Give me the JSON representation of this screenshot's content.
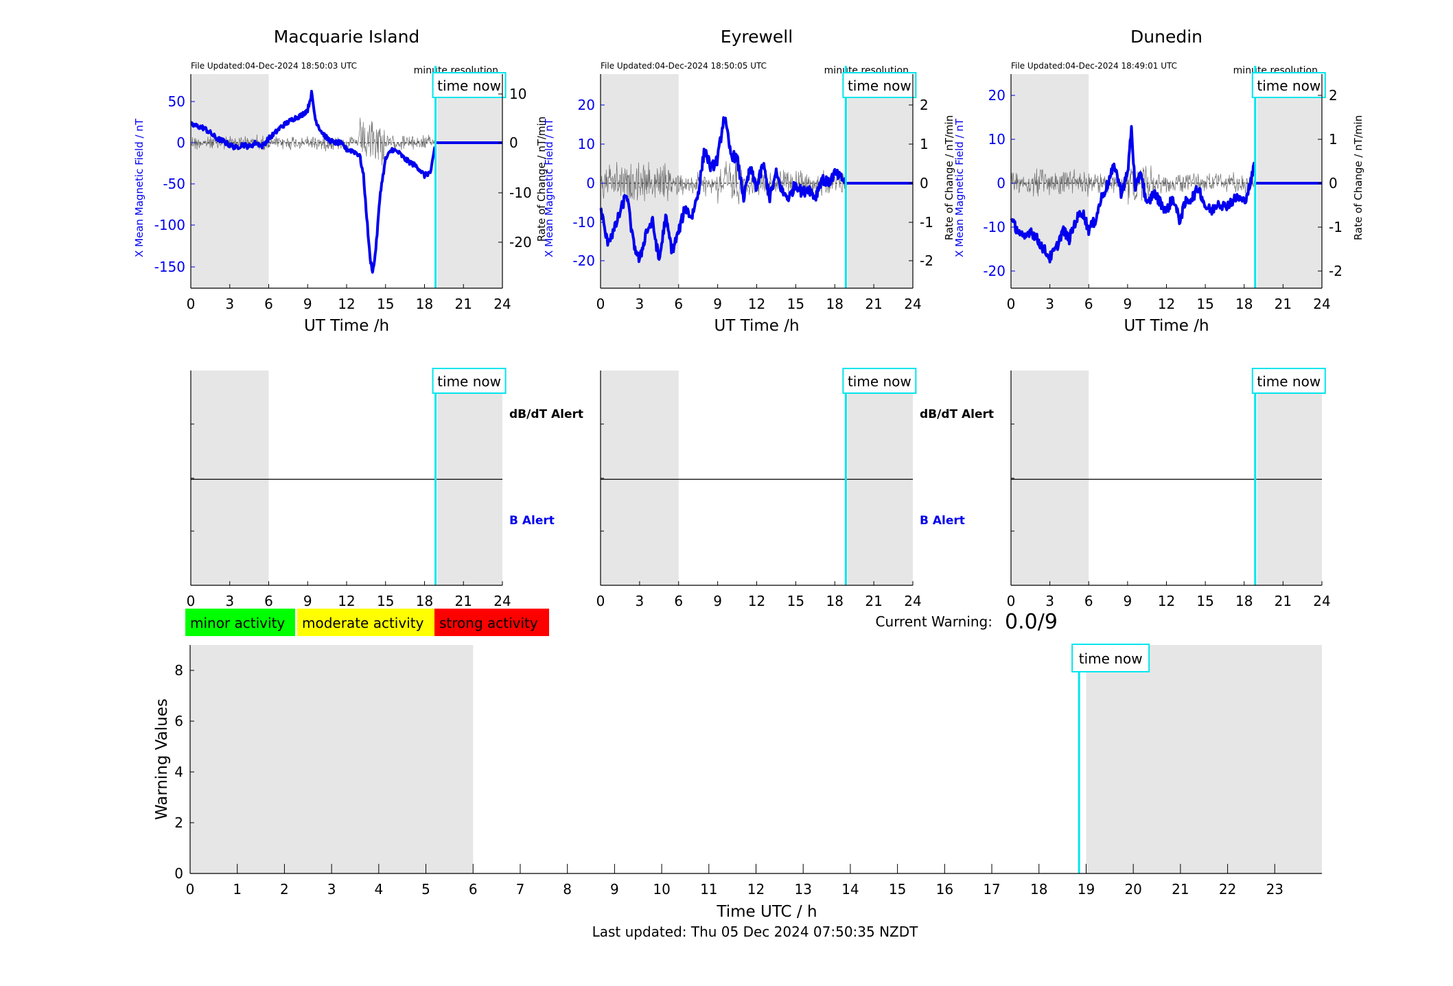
{
  "panels": [
    {
      "station": "Macquarie Island",
      "file_updated": "File Updated:04-Dec-2024 18:50:03 UTC",
      "resolution": "minute resolution",
      "time_now_label": "time now",
      "ylabel_left": "X Mean Magnetic Field / nT",
      "ylabel_right": "",
      "xlabel": "UT Time /h",
      "x_ticks": [
        "0",
        "3",
        "6",
        "9",
        "12",
        "15",
        "18",
        "21",
        "24"
      ],
      "y_left_ticks": [
        "50",
        "0",
        "-50",
        "-100",
        "-150"
      ],
      "y_right_ticks": [
        "10",
        "0",
        "-10",
        "-20"
      ],
      "alert_db_label": "dB/dT Alert",
      "alert_b_label": "B Alert"
    },
    {
      "station": "Eyrewell",
      "file_updated": "File Updated:04-Dec-2024 18:50:05 UTC",
      "resolution": "minute resolution",
      "time_now_label": "time now",
      "ylabel_left": "X Mean Magnetic Field / nT",
      "ylabel_right": "Rate of Change / nT/min",
      "xlabel": "UT Time /h",
      "x_ticks": [
        "0",
        "3",
        "6",
        "9",
        "12",
        "15",
        "18",
        "21",
        "24"
      ],
      "y_left_ticks": [
        "20",
        "10",
        "0",
        "-10",
        "-20"
      ],
      "y_right_ticks": [
        "2",
        "1",
        "0",
        "-1",
        "-2"
      ],
      "alert_db_label": "dB/dT Alert",
      "alert_b_label": "B Alert"
    },
    {
      "station": "Dunedin",
      "file_updated": "File Updated:04-Dec-2024 18:49:01 UTC",
      "resolution": "minute resolution",
      "time_now_label": "time now",
      "ylabel_left": "X Mean Magnetic Field / nT",
      "ylabel_right": "Rate of Change / nT/min",
      "xlabel": "UT Time /h",
      "x_ticks": [
        "0",
        "3",
        "6",
        "9",
        "12",
        "15",
        "18",
        "21",
        "24"
      ],
      "y_left_ticks": [
        "20",
        "10",
        "0",
        "-10",
        "-20"
      ],
      "y_right_ticks": [
        "2",
        "1",
        "0",
        "-1",
        "-2"
      ],
      "alert_db_label": "",
      "alert_b_label": ""
    }
  ],
  "extra_ylabel_right_left": "Rate of Change / nT/min",
  "legend": [
    {
      "label": "minor activity",
      "color": "#00ff00"
    },
    {
      "label": "moderate activity",
      "color": "#ffff00"
    },
    {
      "label": "strong activity",
      "color": "#ff0000"
    }
  ],
  "current_warning": {
    "label": "Current Warning:",
    "value": "0.0/9"
  },
  "warning_chart": {
    "time_now_label": "time now",
    "ylabel": "Warning Values",
    "xlabel": "Time UTC / h",
    "y_ticks": [
      "8",
      "6",
      "4",
      "2",
      "0"
    ],
    "x_ticks": [
      "0",
      "1",
      "2",
      "3",
      "4",
      "5",
      "6",
      "7",
      "8",
      "9",
      "10",
      "11",
      "12",
      "13",
      "14",
      "15",
      "16",
      "17",
      "18",
      "19",
      "20",
      "21",
      "22",
      "23"
    ]
  },
  "footer": "Last updated: Thu 05 Dec 2024 07:50:35 NZDT",
  "colors": {
    "field": "#0000ee",
    "rate": "#555555",
    "night": "#e6e6e6",
    "time_now": "#00e5ee",
    "axis": "#000000"
  },
  "chart_data": [
    {
      "type": "line",
      "title": "Macquarie Island",
      "xlabel": "UT Time /h",
      "ylabel": "X Mean Magnetic Field / nT",
      "xlim": [
        0,
        24
      ],
      "ylim": [
        -175,
        85
      ],
      "y2lim": [
        -29,
        10
      ],
      "time_now": 18.85,
      "night_bands": [
        [
          0,
          6
        ],
        [
          19,
          24
        ]
      ],
      "series": [
        {
          "x": [
            0,
            0.5,
            1,
            1.5,
            2,
            2.5,
            3,
            3.5,
            4,
            4.5,
            5,
            5.5,
            6,
            6.5,
            7,
            7.5,
            8,
            8.5,
            9,
            9.3,
            9.6,
            10,
            10.5,
            11,
            11.5,
            12,
            12.5,
            13,
            13.3,
            13.6,
            13.8,
            14,
            14.1,
            14.3,
            14.6,
            15,
            15.5,
            16,
            16.5,
            17,
            17.5,
            18,
            18.5,
            18.85,
            20,
            21,
            22,
            23,
            24
          ],
          "y": [
            22,
            20,
            18,
            12,
            5,
            2,
            -3,
            -6,
            -2,
            -5,
            0,
            -4,
            5,
            12,
            20,
            25,
            30,
            33,
            40,
            60,
            28,
            15,
            5,
            0,
            0,
            -8,
            -10,
            -15,
            -40,
            -100,
            -140,
            -155,
            -150,
            -120,
            -60,
            -20,
            -8,
            -12,
            -20,
            -25,
            -30,
            -40,
            -35,
            0,
            0,
            0,
            0,
            0,
            0
          ]
        }
      ]
    },
    {
      "type": "line",
      "title": "Eyrewell",
      "xlabel": "UT Time /h",
      "ylabel": "X Mean Magnetic Field / nT",
      "xlim": [
        0,
        24
      ],
      "ylim": [
        -24,
        20
      ],
      "y2lim": [
        -2.6,
        2.2
      ],
      "time_now": 18.85,
      "night_bands": [
        [
          0,
          6
        ],
        [
          19,
          24
        ]
      ],
      "series": [
        {
          "x": [
            0,
            0.5,
            1,
            1.5,
            2,
            2.5,
            3,
            3.5,
            4,
            4.5,
            5,
            5.5,
            6,
            6.5,
            7,
            7.5,
            8,
            8.5,
            9,
            9.5,
            10,
            10.5,
            11,
            11.5,
            12,
            12.5,
            13,
            13.5,
            14,
            14.5,
            15,
            15.5,
            16,
            16.5,
            17,
            17.5,
            18,
            18.5,
            19,
            20,
            21,
            22,
            23,
            24
          ],
          "y": [
            -5,
            -12,
            -10,
            -6,
            -2,
            -12,
            -16,
            -10,
            -8,
            -16,
            -7,
            -14,
            -10,
            -5,
            -7,
            -2,
            7,
            3,
            5,
            14,
            6,
            5,
            -3,
            3,
            -1,
            4,
            -3,
            2,
            -2,
            -3,
            0,
            -2,
            -1,
            -3,
            1,
            0,
            2,
            1,
            0,
            0,
            0,
            0,
            0,
            0
          ]
        }
      ]
    },
    {
      "type": "line",
      "title": "Dunedin",
      "xlabel": "UT Time /h",
      "ylabel": "X Mean Magnetic Field / nT",
      "xlim": [
        0,
        24
      ],
      "ylim": [
        -24,
        22
      ],
      "y2lim": [
        -2.2,
        2.1
      ],
      "time_now": 18.85,
      "night_bands": [
        [
          0,
          6
        ],
        [
          19,
          24
        ]
      ],
      "series": [
        {
          "x": [
            0,
            0.5,
            1,
            1.5,
            2,
            2.5,
            3,
            3.5,
            4,
            4.5,
            5,
            5.5,
            6,
            6.5,
            7,
            7.5,
            8,
            8.5,
            9,
            9.3,
            9.6,
            10,
            10.5,
            11,
            11.5,
            12,
            12.5,
            13,
            13.5,
            14,
            14.5,
            15,
            15.5,
            16,
            16.5,
            17,
            17.5,
            18,
            18.5,
            18.85,
            20,
            21,
            22,
            23,
            24
          ],
          "y": [
            -8,
            -10,
            -12,
            -10,
            -12,
            -14,
            -16,
            -14,
            -10,
            -12,
            -8,
            -6,
            -10,
            -8,
            -3,
            0,
            4,
            -2,
            2,
            12,
            -2,
            3,
            -5,
            -2,
            -4,
            -6,
            -3,
            -8,
            -4,
            -3,
            -1,
            -5,
            -6,
            -4,
            -5,
            -4,
            -3,
            -4,
            0,
            5,
            0,
            0,
            0,
            0,
            0
          ]
        }
      ]
    },
    {
      "type": "bar",
      "title": "",
      "xlabel": "Time UTC / h",
      "ylabel": "Warning Values",
      "xlim": [
        0,
        24
      ],
      "ylim": [
        0,
        9
      ],
      "time_now": 18.85,
      "night_bands": [
        [
          0,
          6
        ],
        [
          19,
          24
        ]
      ],
      "series": [
        {
          "x": [
            0,
            1,
            2,
            3,
            4,
            5,
            6,
            7,
            8,
            9,
            10,
            11,
            12,
            13,
            14,
            15,
            16,
            17,
            18
          ],
          "values": [
            0,
            0,
            0,
            0,
            0,
            0,
            0,
            0,
            0,
            0,
            0,
            0,
            0,
            0,
            0,
            0,
            0,
            0,
            0
          ]
        }
      ]
    }
  ]
}
